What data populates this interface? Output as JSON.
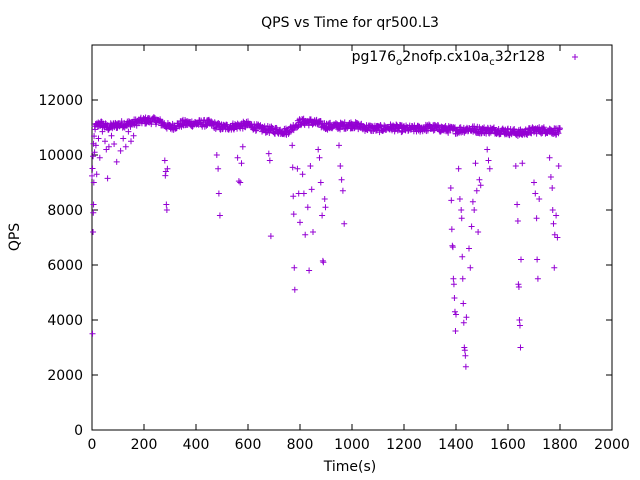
{
  "chart_data": {
    "type": "scatter",
    "title": "QPS vs Time for qr500.L3",
    "xlabel": "Time(s)",
    "ylabel": "QPS",
    "xlim": [
      0,
      2000
    ],
    "ylim": [
      0,
      14000
    ],
    "xticks": [
      0,
      200,
      400,
      600,
      800,
      1000,
      1200,
      1400,
      1600,
      1800,
      2000
    ],
    "yticks": [
      0,
      2000,
      4000,
      6000,
      8000,
      10000,
      12000
    ],
    "xtick_labels": [
      "0",
      "200",
      "400",
      "600",
      "800",
      "1000",
      "1200",
      "1400",
      "1600",
      "1800",
      "2000"
    ],
    "ytick_labels": [
      "0",
      "2000",
      "4000",
      "6000",
      "8000",
      "10000",
      "12000"
    ],
    "grid": false,
    "legend_position": "top-right",
    "marker": "+",
    "series": [
      {
        "name": "pg176_o2nofp.cx10a_c32r128",
        "legend_base": "pg176",
        "legend_sub1": "o",
        "legend_mid": "2nofp.cx10a",
        "legend_sub2": "c",
        "legend_tail": "32r128",
        "color": "#9400d3",
        "baseline": [
          [
            0,
            9200
          ],
          [
            10,
            11000
          ],
          [
            30,
            11150
          ],
          [
            60,
            11000
          ],
          [
            100,
            11100
          ],
          [
            150,
            11150
          ],
          [
            200,
            11250
          ],
          [
            250,
            11250
          ],
          [
            300,
            11000
          ],
          [
            350,
            11150
          ],
          [
            400,
            11150
          ],
          [
            450,
            11150
          ],
          [
            500,
            11000
          ],
          [
            550,
            11050
          ],
          [
            600,
            11100
          ],
          [
            650,
            10950
          ],
          [
            700,
            10900
          ],
          [
            750,
            10850
          ],
          [
            800,
            11200
          ],
          [
            850,
            11200
          ],
          [
            900,
            11050
          ],
          [
            950,
            11050
          ],
          [
            1000,
            11100
          ],
          [
            1050,
            11000
          ],
          [
            1100,
            10950
          ],
          [
            1150,
            11000
          ],
          [
            1200,
            10950
          ],
          [
            1250,
            10950
          ],
          [
            1300,
            11000
          ],
          [
            1350,
            10950
          ],
          [
            1400,
            10900
          ],
          [
            1450,
            10950
          ],
          [
            1500,
            10900
          ],
          [
            1550,
            10900
          ],
          [
            1600,
            10850
          ],
          [
            1650,
            10800
          ],
          [
            1700,
            10900
          ],
          [
            1750,
            10900
          ],
          [
            1800,
            10850
          ]
        ],
        "outliers": [
          [
            2,
            3500
          ],
          [
            4,
            7200
          ],
          [
            5,
            7900
          ],
          [
            6,
            8200
          ],
          [
            7,
            9000
          ],
          [
            10,
            10100
          ],
          [
            15,
            10350
          ],
          [
            18,
            9300
          ],
          [
            25,
            10600
          ],
          [
            30,
            9900
          ],
          [
            40,
            10850
          ],
          [
            50,
            10500
          ],
          [
            55,
            10200
          ],
          [
            60,
            9150
          ],
          [
            65,
            10300
          ],
          [
            75,
            10700
          ],
          [
            85,
            10400
          ],
          [
            95,
            9750
          ],
          [
            110,
            10150
          ],
          [
            120,
            10600
          ],
          [
            130,
            10300
          ],
          [
            140,
            10850
          ],
          [
            150,
            10500
          ],
          [
            160,
            10700
          ],
          [
            280,
            9800
          ],
          [
            282,
            9250
          ],
          [
            284,
            9400
          ],
          [
            286,
            8200
          ],
          [
            288,
            8000
          ],
          [
            290,
            9500
          ],
          [
            480,
            10000
          ],
          [
            485,
            9500
          ],
          [
            488,
            8600
          ],
          [
            492,
            7800
          ],
          [
            560,
            9900
          ],
          [
            565,
            9050
          ],
          [
            570,
            9000
          ],
          [
            575,
            9700
          ],
          [
            580,
            10300
          ],
          [
            680,
            10050
          ],
          [
            684,
            9800
          ],
          [
            688,
            7050
          ],
          [
            770,
            10350
          ],
          [
            772,
            9550
          ],
          [
            774,
            8500
          ],
          [
            776,
            7850
          ],
          [
            778,
            5900
          ],
          [
            780,
            5100
          ],
          [
            790,
            9500
          ],
          [
            795,
            8600
          ],
          [
            800,
            7550
          ],
          [
            810,
            9300
          ],
          [
            815,
            8600
          ],
          [
            820,
            7100
          ],
          [
            830,
            8100
          ],
          [
            835,
            5800
          ],
          [
            840,
            9600
          ],
          [
            845,
            8750
          ],
          [
            850,
            7200
          ],
          [
            870,
            10200
          ],
          [
            875,
            9900
          ],
          [
            880,
            9000
          ],
          [
            885,
            7800
          ],
          [
            888,
            6150
          ],
          [
            890,
            6100
          ],
          [
            895,
            8400
          ],
          [
            898,
            8100
          ],
          [
            950,
            10350
          ],
          [
            955,
            9600
          ],
          [
            960,
            9100
          ],
          [
            965,
            8700
          ],
          [
            970,
            7500
          ],
          [
            1380,
            8800
          ],
          [
            1382,
            8350
          ],
          [
            1384,
            7300
          ],
          [
            1386,
            6700
          ],
          [
            1388,
            6650
          ],
          [
            1390,
            5500
          ],
          [
            1392,
            5300
          ],
          [
            1394,
            4800
          ],
          [
            1396,
            4300
          ],
          [
            1398,
            3600
          ],
          [
            1400,
            4200
          ],
          [
            1410,
            9500
          ],
          [
            1415,
            8400
          ],
          [
            1420,
            8000
          ],
          [
            1422,
            7700
          ],
          [
            1424,
            6300
          ],
          [
            1426,
            5500
          ],
          [
            1428,
            4600
          ],
          [
            1430,
            3900
          ],
          [
            1432,
            3000
          ],
          [
            1434,
            2900
          ],
          [
            1436,
            2700
          ],
          [
            1438,
            2300
          ],
          [
            1440,
            4100
          ],
          [
            1450,
            6600
          ],
          [
            1455,
            5900
          ],
          [
            1460,
            7400
          ],
          [
            1465,
            8300
          ],
          [
            1470,
            8000
          ],
          [
            1475,
            9700
          ],
          [
            1480,
            8700
          ],
          [
            1485,
            7200
          ],
          [
            1490,
            9100
          ],
          [
            1495,
            8900
          ],
          [
            1520,
            10200
          ],
          [
            1525,
            9800
          ],
          [
            1530,
            9500
          ],
          [
            1630,
            9600
          ],
          [
            1635,
            8200
          ],
          [
            1638,
            7600
          ],
          [
            1640,
            5300
          ],
          [
            1642,
            5200
          ],
          [
            1644,
            4000
          ],
          [
            1646,
            3800
          ],
          [
            1648,
            3000
          ],
          [
            1650,
            6200
          ],
          [
            1655,
            9700
          ],
          [
            1700,
            9000
          ],
          [
            1705,
            8600
          ],
          [
            1710,
            7700
          ],
          [
            1712,
            6200
          ],
          [
            1715,
            5500
          ],
          [
            1720,
            8400
          ],
          [
            1760,
            9900
          ],
          [
            1765,
            9200
          ],
          [
            1770,
            8800
          ],
          [
            1772,
            8000
          ],
          [
            1775,
            7500
          ],
          [
            1778,
            5900
          ],
          [
            1780,
            7100
          ],
          [
            1785,
            7800
          ],
          [
            1790,
            7000
          ],
          [
            1795,
            9600
          ]
        ]
      }
    ]
  }
}
